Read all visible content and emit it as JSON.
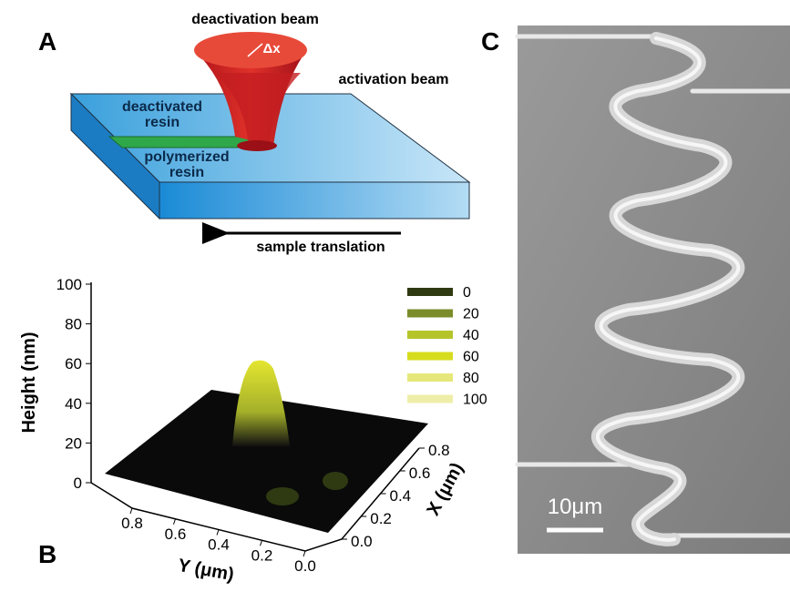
{
  "panel_a": {
    "label": "A",
    "deactivation_beam": "deactivation beam",
    "delta_x": "Δx",
    "activation_beam": "activation beam",
    "deactivated_resin": [
      "deactivated",
      "resin"
    ],
    "polymerized_resin": [
      "polymerized",
      "resin"
    ],
    "sample_translation": "sample translation"
  },
  "panel_b": {
    "label": "B",
    "z_axis_label": "Height (nm)",
    "z_ticks": [
      0,
      20,
      40,
      60,
      80,
      100
    ],
    "y_axis_label": "Y (μm)",
    "y_ticks": [
      0.8,
      0.6,
      0.4,
      0.2,
      {
        "value": 0,
        "label": "0.0"
      }
    ],
    "x_axis_label": "X (μm)",
    "x_ticks": [
      {
        "value": 0,
        "label": "0.0"
      },
      0.2,
      0.4,
      0.6,
      0.8
    ],
    "legend": [
      {
        "label": 0,
        "color": "#2f3a12"
      },
      {
        "label": 20,
        "color": "#7a8d2a"
      },
      {
        "label": 40,
        "color": "#b5c42a"
      },
      {
        "label": 60,
        "color": "#d6dc1e"
      },
      {
        "label": 80,
        "color": "#e6e77a"
      },
      {
        "label": 100,
        "color": "#eeeea8"
      }
    ]
  },
  "panel_c": {
    "label": "C",
    "scale_bar": "10μm"
  }
}
